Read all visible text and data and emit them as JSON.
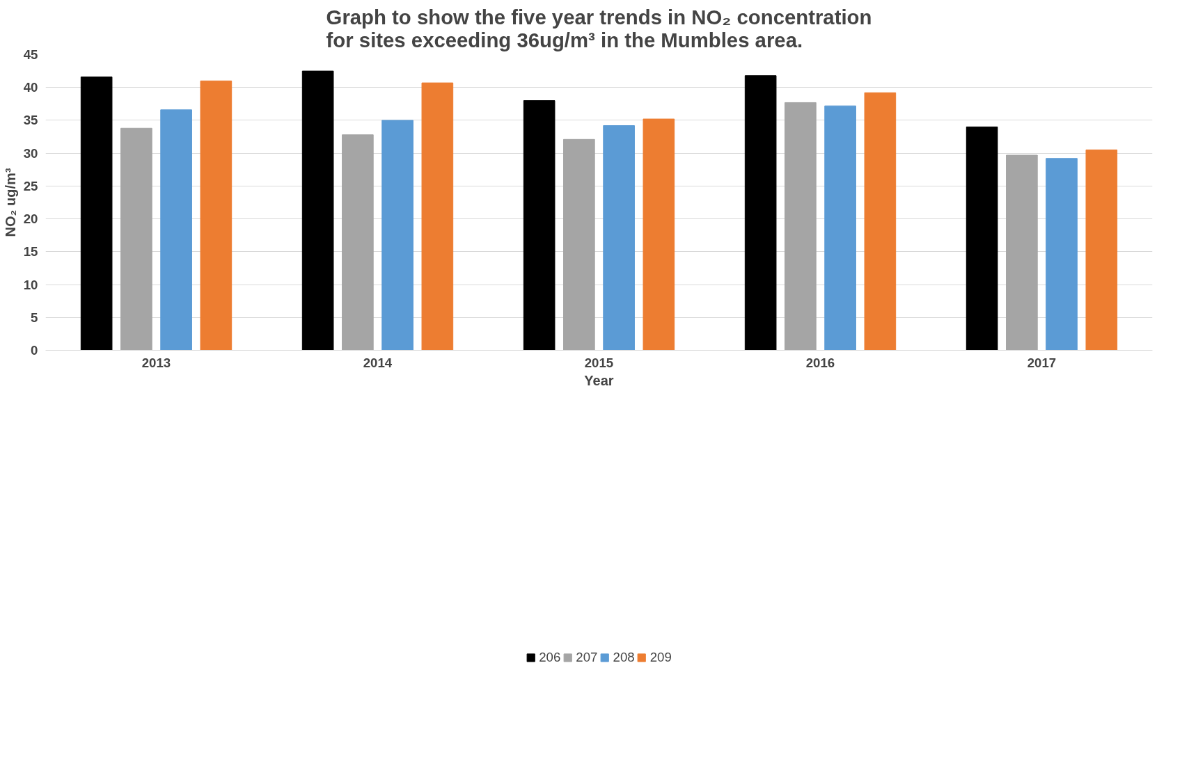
{
  "chart_data": {
    "type": "bar",
    "title": "Graph to show the five year trends in NO₂ concentration\nfor sites exceeding 36ug/m³ in the Mumbles area.",
    "xlabel": "Year",
    "ylabel": "NO₂ ug/m³",
    "categories": [
      "2013",
      "2014",
      "2015",
      "2016",
      "2017"
    ],
    "series": [
      {
        "name": "206",
        "color": "#000000",
        "values": [
          41.6,
          42.5,
          38.0,
          41.8,
          34.0
        ]
      },
      {
        "name": "207",
        "color": "#a5a5a5",
        "values": [
          33.8,
          32.8,
          32.1,
          37.7,
          29.7
        ]
      },
      {
        "name": "208",
        "color": "#5b9bd5",
        "values": [
          36.6,
          35.0,
          34.2,
          37.2,
          29.2
        ]
      },
      {
        "name": "209",
        "color": "#ed7d31",
        "values": [
          41.0,
          40.7,
          35.2,
          39.2,
          30.5
        ]
      }
    ],
    "ylim": [
      0,
      45
    ],
    "yticks": [
      0,
      5,
      10,
      15,
      20,
      25,
      30,
      35,
      40,
      45
    ],
    "grid": "y",
    "legend": "bottom"
  }
}
